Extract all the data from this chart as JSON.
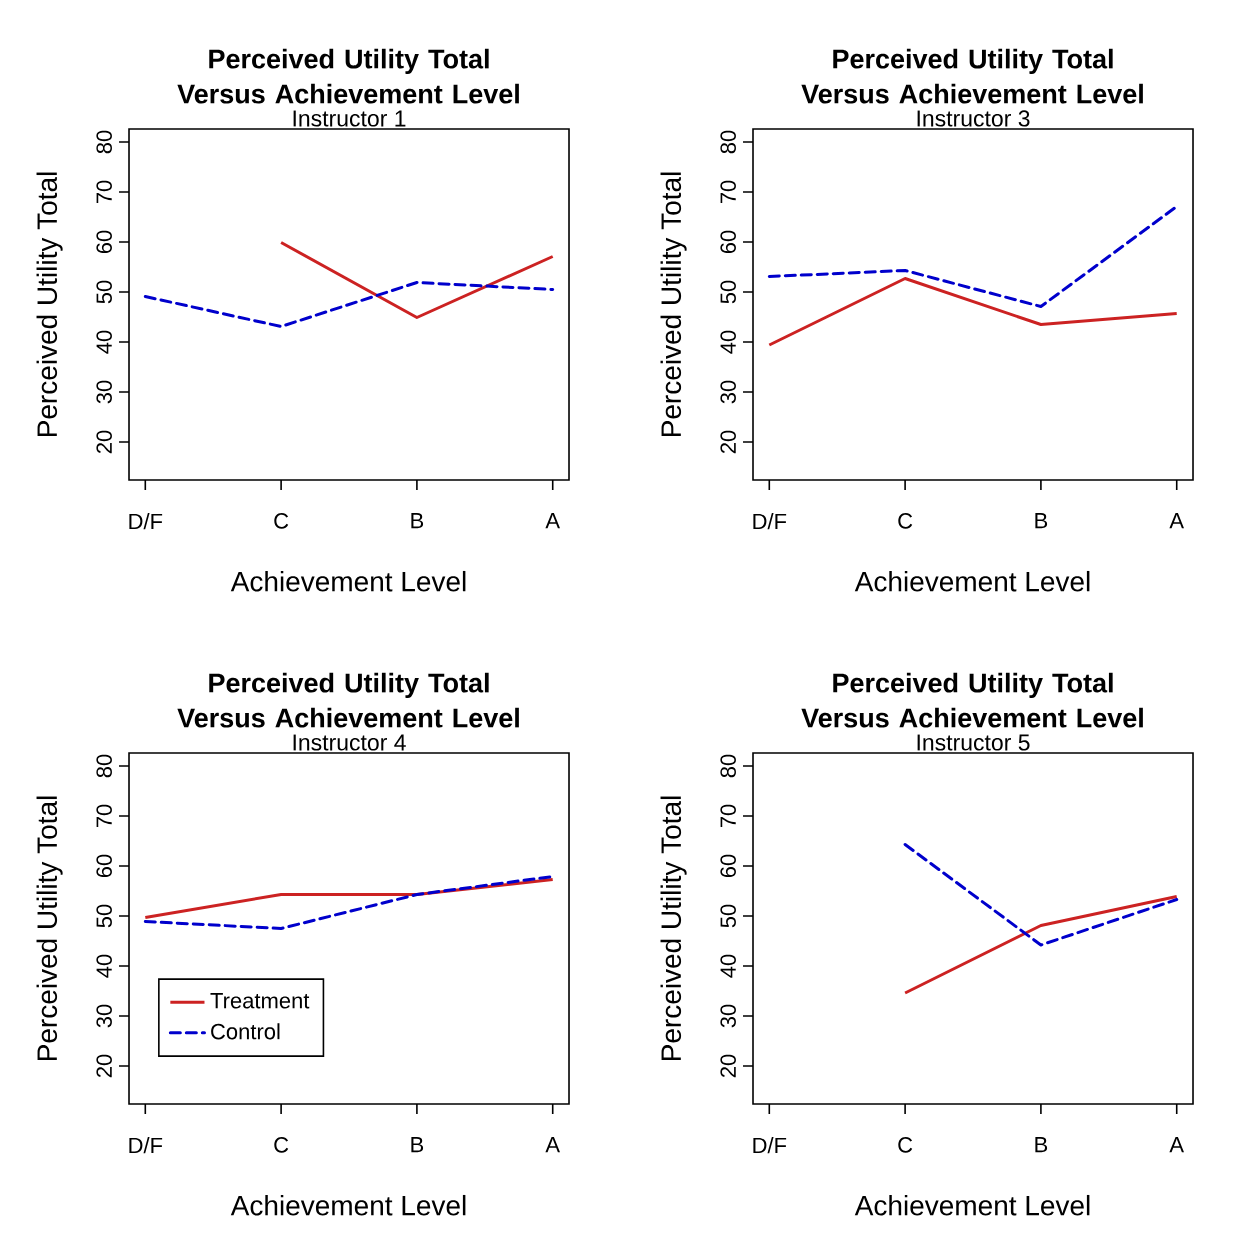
{
  "chart_data": [
    {
      "type": "line",
      "title": "Perceived Utility Total Versus Achievement Level",
      "subtitle": "Instructor 1",
      "xlabel": "Achievement Level",
      "ylabel": "Perceived Utility Total",
      "categories": [
        "D/F",
        "C",
        "B",
        "A"
      ],
      "ylim": [
        12.4,
        82.6
      ],
      "yticks": [
        20,
        30,
        40,
        50,
        60,
        70,
        80
      ],
      "series": [
        {
          "color": "#cc2222",
          "line_style": "solid",
          "values": [
            null,
            59.9,
            44.9,
            57.1
          ]
        },
        {
          "color": "#0000cc",
          "line_style": "dashed",
          "values": [
            49.1,
            43.1,
            51.9,
            50.5
          ]
        }
      ]
    },
    {
      "type": "line",
      "title": "Perceived Utility Total Versus Achievement Level",
      "subtitle": "Instructor 3",
      "xlabel": "Achievement Level",
      "ylabel": "Perceived Utility Total",
      "categories": [
        "D/F",
        "C",
        "B",
        "A"
      ],
      "ylim": [
        12.4,
        82.6
      ],
      "yticks": [
        20,
        30,
        40,
        50,
        60,
        70,
        80
      ],
      "series": [
        {
          "color": "#cc2222",
          "line_style": "solid",
          "values": [
            39.4,
            52.7,
            43.5,
            45.7
          ]
        },
        {
          "color": "#0000cc",
          "line_style": "dashed",
          "values": [
            53.1,
            54.3,
            47.1,
            67.1
          ]
        }
      ]
    },
    {
      "type": "line",
      "title": "Perceived Utility Total Versus Achievement Level",
      "subtitle": "Instructor 4",
      "xlabel": "Achievement Level",
      "ylabel": "Perceived Utility Total",
      "categories": [
        "D/F",
        "C",
        "B",
        "A"
      ],
      "ylim": [
        12.4,
        82.6
      ],
      "yticks": [
        20,
        30,
        40,
        50,
        60,
        70,
        80
      ],
      "legend": "bottom left",
      "series": [
        {
          "name": "Treatment",
          "color": "#cc2222",
          "line_style": "solid",
          "values": [
            49.7,
            54.3,
            54.3,
            57.3
          ]
        },
        {
          "name": "Control",
          "color": "#0000cc",
          "line_style": "dashed",
          "values": [
            48.9,
            47.5,
            54.3,
            57.9
          ]
        }
      ]
    },
    {
      "type": "line",
      "title": "Perceived Utility Total Versus Achievement Level",
      "subtitle": "Instructor 5",
      "xlabel": "Achievement Level",
      "ylabel": "Perceived Utility Total",
      "categories": [
        "D/F",
        "C",
        "B",
        "A"
      ],
      "ylim": [
        12.4,
        82.6
      ],
      "yticks": [
        20,
        30,
        40,
        50,
        60,
        70,
        80
      ],
      "series": [
        {
          "color": "#cc2222",
          "line_style": "solid",
          "values": [
            null,
            34.6,
            48.1,
            53.9
          ]
        },
        {
          "color": "#0000cc",
          "line_style": "dashed",
          "values": [
            null,
            64.3,
            44.2,
            53.3
          ]
        }
      ]
    }
  ]
}
